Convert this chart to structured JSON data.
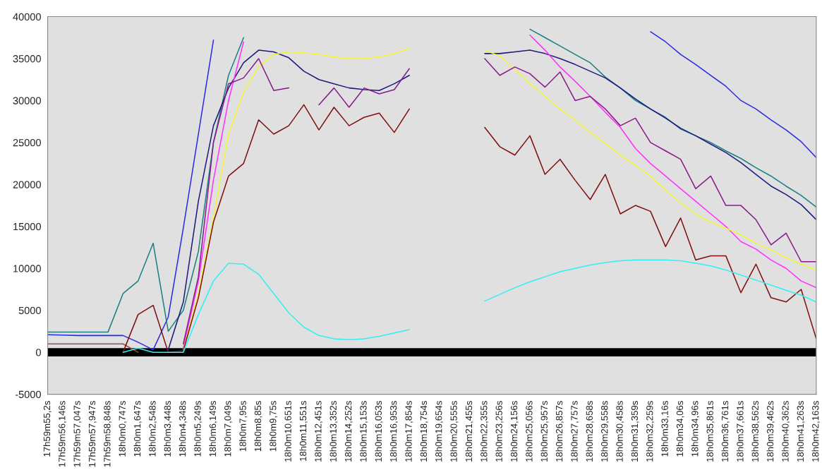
{
  "chart_data": {
    "type": "line",
    "ylim": [
      -5000,
      40000
    ],
    "yticks": [
      -5000,
      0,
      5000,
      10000,
      15000,
      20000,
      25000,
      30000,
      35000,
      40000
    ],
    "categories": [
      "17h59m55,2s",
      "17h59m56,146s",
      "17h59m57,047s",
      "17h59m57,947s",
      "17h59m58,848s",
      "18h0m0,747s",
      "18h0m1,647s",
      "18h0m2,548s",
      "18h0m3,448s",
      "18h0m4,348s",
      "18h0m5,249s",
      "18h0m6,149s",
      "18h0m7,049s",
      "18h0m7,95s",
      "18h0m8,85s",
      "18h0m9,75s",
      "18h0m10,651s",
      "18h0m11,551s",
      "18h0m12,451s",
      "18h0m13,352s",
      "18h0m14,252s",
      "18h0m15,153s",
      "18h0m16,053s",
      "18h0m16,953s",
      "18h0m17,854s",
      "18h0m18,754s",
      "18h0m19,654s",
      "18h0m20,555s",
      "18h0m21,455s",
      "18h0m22,355s",
      "18h0m23,256s",
      "18h0m24,156s",
      "18h0m25,056s",
      "18h0m25,957s",
      "18h0m26,857s",
      "18h0m27,757s",
      "18h0m28,658s",
      "18h0m29,558s",
      "18h0m30,458s",
      "18h0m31,359s",
      "18h0m32,259s",
      "18h0m33,16s",
      "18h0m34,06s",
      "18h0m34,96s",
      "18h0m35,861s",
      "18h0m36,761s",
      "18h0m37,661s",
      "18h0m38,562s",
      "18h0m39,462s",
      "18h0m40,362s",
      "18h0m41,263s",
      "18h0m42,163s"
    ],
    "grid": false,
    "bands": [
      {
        "axis": "y",
        "from": -500,
        "to": 500,
        "color": "#000000"
      }
    ],
    "series": [
      {
        "color": "#a04848",
        "values": [
          1000,
          1000,
          1000,
          1000,
          1000,
          1000,
          0,
          null,
          null,
          null,
          null,
          null,
          null,
          null,
          null,
          null,
          null,
          null,
          null,
          null,
          null,
          null,
          null,
          null,
          null,
          null,
          null,
          null,
          null,
          null,
          null,
          null,
          null,
          null,
          null,
          null,
          null,
          null,
          null,
          null,
          null,
          null,
          null,
          null,
          null,
          null,
          null,
          null,
          null,
          null,
          null,
          null
        ]
      },
      {
        "color": "#2a2ae6",
        "values": [
          2100,
          2050,
          2000,
          2000,
          2000,
          2000,
          1200,
          300,
          4200,
          14800,
          26000,
          37200,
          null,
          null,
          null,
          null,
          null,
          null,
          null,
          null,
          null,
          null,
          null,
          null,
          null,
          null,
          null,
          null,
          null,
          null,
          null,
          null,
          null,
          null,
          null,
          null,
          null,
          null,
          null,
          null,
          38200,
          37000,
          35500,
          34300,
          33000,
          31700,
          30000,
          29000,
          27700,
          26500,
          25100,
          23200
        ]
      },
      {
        "color": "#1a8080",
        "values": [
          2400,
          2400,
          2400,
          2400,
          2400,
          7000,
          8500,
          13000,
          2500,
          5000,
          12000,
          25000,
          33000,
          37500,
          null,
          null,
          null,
          null,
          null,
          null,
          null,
          null,
          null,
          null,
          null,
          null,
          null,
          null,
          null,
          null,
          null,
          null,
          38500,
          37500,
          36500,
          35500,
          34500,
          32800,
          31500,
          30000,
          29000,
          28000,
          26600,
          25800,
          25000,
          24000,
          23100,
          22000,
          21000,
          19800,
          18700,
          17300
        ]
      },
      {
        "color": "#1a1a80",
        "values": [
          null,
          null,
          null,
          null,
          null,
          null,
          null,
          null,
          300,
          6000,
          18000,
          27000,
          31500,
          34500,
          36000,
          35800,
          35100,
          33500,
          32500,
          32000,
          31500,
          31300,
          31200,
          32000,
          33000,
          null,
          null,
          null,
          null,
          35600,
          35600,
          35800,
          36000,
          35600,
          35000,
          34300,
          33500,
          32700,
          31500,
          30200,
          29000,
          27900,
          26700,
          25800,
          24800,
          23800,
          22600,
          21200,
          19800,
          18800,
          17600,
          15800
        ]
      },
      {
        "color": "#ff30ff",
        "values": [
          null,
          null,
          null,
          null,
          null,
          null,
          null,
          null,
          null,
          500,
          8500,
          20500,
          30000,
          37000,
          null,
          null,
          null,
          null,
          null,
          null,
          null,
          null,
          null,
          null,
          null,
          null,
          null,
          null,
          null,
          null,
          null,
          null,
          37800,
          36000,
          34000,
          32300,
          30500,
          28600,
          26800,
          24300,
          22500,
          21000,
          19500,
          18000,
          16500,
          15000,
          13200,
          12300,
          11000,
          10000,
          8500,
          7700
        ]
      },
      {
        "color": "#f4f430",
        "values": [
          null,
          null,
          null,
          null,
          null,
          null,
          null,
          null,
          null,
          300,
          7000,
          16000,
          26000,
          31000,
          34000,
          35500,
          35800,
          35700,
          35500,
          35200,
          35000,
          35000,
          35200,
          35600,
          36200,
          null,
          null,
          null,
          null,
          36000,
          35300,
          33700,
          32000,
          30500,
          29000,
          27700,
          26200,
          24900,
          23500,
          22300,
          21000,
          19300,
          17800,
          16500,
          15500,
          14800,
          14000,
          13000,
          12200,
          11300,
          10500,
          9800
        ]
      },
      {
        "color": "#8a1a8a",
        "values": [
          null,
          null,
          null,
          null,
          null,
          null,
          null,
          null,
          null,
          1000,
          9000,
          25000,
          32000,
          32700,
          35000,
          31200,
          31500,
          null,
          29500,
          31500,
          29200,
          31500,
          30800,
          31300,
          33800,
          null,
          null,
          null,
          null,
          35000,
          33000,
          34000,
          33200,
          31600,
          33400,
          30000,
          30500,
          29000,
          27000,
          27900,
          25000,
          24000,
          23000,
          19500,
          21000,
          17500,
          17500,
          15800,
          12800,
          14200,
          10800,
          10800
        ]
      },
      {
        "color": "#801010",
        "values": [
          null,
          null,
          null,
          null,
          null,
          0,
          4500,
          5600,
          0,
          200,
          6500,
          15500,
          21000,
          22500,
          27700,
          26000,
          27000,
          29500,
          26500,
          29200,
          27000,
          28000,
          28500,
          26200,
          29000,
          null,
          null,
          null,
          null,
          26800,
          24500,
          23500,
          25800,
          21200,
          23000,
          20500,
          18200,
          21200,
          16500,
          17500,
          16800,
          12600,
          16000,
          11000,
          11500,
          11500,
          7100,
          10500,
          6500,
          6000,
          7500,
          1600
        ]
      },
      {
        "color": "#30f0f0",
        "values": [
          null,
          null,
          null,
          null,
          null,
          0,
          500,
          0,
          0,
          0,
          4500,
          8500,
          10600,
          10500,
          9300,
          7000,
          4700,
          3000,
          2000,
          1600,
          1500,
          1600,
          1900,
          2300,
          2700,
          null,
          null,
          null,
          null,
          6100,
          6900,
          7700,
          8400,
          9000,
          9600,
          10000,
          10400,
          10700,
          10900,
          11000,
          11000,
          11000,
          10900,
          10600,
          10300,
          9800,
          9200,
          8600,
          8000,
          7400,
          6800,
          6000
        ]
      }
    ]
  }
}
